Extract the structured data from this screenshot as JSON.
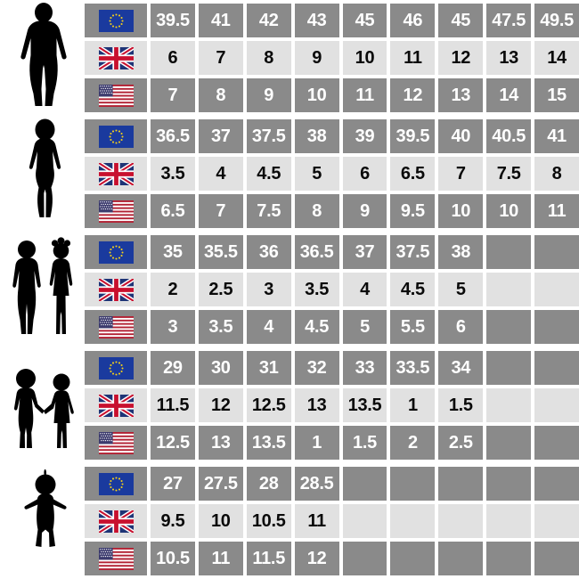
{
  "colors": {
    "cell_dark": "#8a8a8a",
    "cell_light": "#e1e1e1",
    "text_on_dark": "#ffffff",
    "text_on_light": "#0a0a0a",
    "background": "#ffffff",
    "silhouette": "#000000",
    "eu_flag_blue": "#1a3a9e",
    "eu_star_yellow": "#f7d117",
    "uk_flag_navy": "#1e3476",
    "uk_flag_red": "#c8102e",
    "us_flag_red": "#b22234",
    "us_flag_blue": "#3c3b6e"
  },
  "chart_data": {
    "type": "table",
    "description": "Shoe size conversion chart with EU, UK and US sizes for five age groups",
    "column_count": 9,
    "groups": [
      {
        "figure": "man-silhouette-icon",
        "rows": [
          {
            "flag": "eu-flag-icon",
            "values": [
              "39.5",
              "41",
              "42",
              "43",
              "45",
              "46",
              "45",
              "47.5",
              "49.5"
            ]
          },
          {
            "flag": "uk-flag-icon",
            "values": [
              "6",
              "7",
              "8",
              "9",
              "10",
              "11",
              "12",
              "13",
              "14"
            ]
          },
          {
            "flag": "us-flag-icon",
            "values": [
              "7",
              "8",
              "9",
              "10",
              "11",
              "12",
              "13",
              "14",
              "15"
            ]
          }
        ]
      },
      {
        "figure": "woman-silhouette-icon",
        "rows": [
          {
            "flag": "eu-flag-icon",
            "values": [
              "36.5",
              "37",
              "37.5",
              "38",
              "39",
              "39.5",
              "40",
              "40.5",
              "41"
            ]
          },
          {
            "flag": "uk-flag-icon",
            "values": [
              "3.5",
              "4",
              "4.5",
              "5",
              "6",
              "6.5",
              "7",
              "7.5",
              "8"
            ]
          },
          {
            "flag": "us-flag-icon",
            "values": [
              "6.5",
              "7",
              "7.5",
              "8",
              "9",
              "9.5",
              "10",
              "10",
              "11"
            ]
          }
        ]
      },
      {
        "figure": "two-kids-silhouette-icon",
        "rows": [
          {
            "flag": "eu-flag-icon",
            "values": [
              "35",
              "35.5",
              "36",
              "36.5",
              "37",
              "37.5",
              "38",
              "",
              ""
            ]
          },
          {
            "flag": "uk-flag-icon",
            "values": [
              "2",
              "2.5",
              "3",
              "3.5",
              "4",
              "4.5",
              "5",
              "",
              ""
            ]
          },
          {
            "flag": "us-flag-icon",
            "values": [
              "3",
              "3.5",
              "4",
              "4.5",
              "5",
              "5.5",
              "6",
              "",
              ""
            ]
          }
        ]
      },
      {
        "figure": "little-kids-holding-hands-silhouette-icon",
        "rows": [
          {
            "flag": "eu-flag-icon",
            "values": [
              "29",
              "30",
              "31",
              "32",
              "33",
              "33.5",
              "34",
              "",
              ""
            ]
          },
          {
            "flag": "uk-flag-icon",
            "values": [
              "11.5",
              "12",
              "12.5",
              "13",
              "13.5",
              "1",
              "1.5",
              "",
              ""
            ]
          },
          {
            "flag": "us-flag-icon",
            "values": [
              "12.5",
              "13",
              "13.5",
              "1",
              "1.5",
              "2",
              "2.5",
              "",
              ""
            ]
          }
        ]
      },
      {
        "figure": "baby-silhouette-icon",
        "rows": [
          {
            "flag": "eu-flag-icon",
            "values": [
              "27",
              "27.5",
              "28",
              "28.5",
              "",
              "",
              "",
              "",
              ""
            ]
          },
          {
            "flag": "uk-flag-icon",
            "values": [
              "9.5",
              "10",
              "10.5",
              "11",
              "",
              "",
              "",
              "",
              ""
            ]
          },
          {
            "flag": "us-flag-icon",
            "values": [
              "10.5",
              "11",
              "11.5",
              "12",
              "",
              "",
              "",
              "",
              ""
            ]
          }
        ]
      }
    ]
  }
}
